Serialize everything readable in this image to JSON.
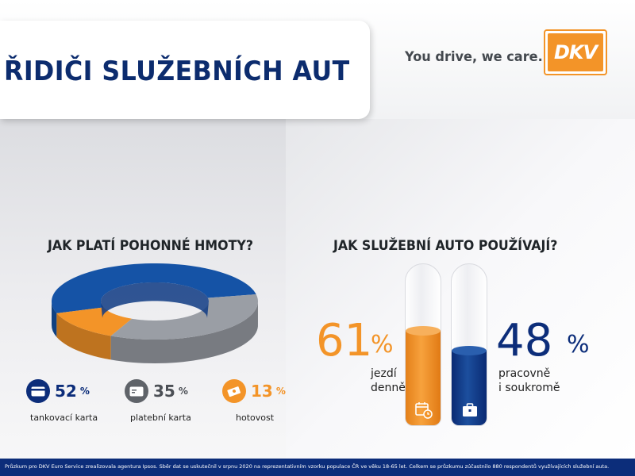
{
  "header": {
    "title": "ŘIDIČI SLUŽEBNÍCH AUT",
    "slogan": "You drive, we care.",
    "logo_text": "DKV"
  },
  "colors": {
    "navy": "#0c2c6e",
    "blue": "#1553a6",
    "gray": "#8e9299",
    "orange": "#f39428"
  },
  "payment": {
    "title": "JAK PLATÍ POHONNÉ HMOTY?",
    "items": [
      {
        "value": "52",
        "unit": "%",
        "label": "tankovací karta",
        "icon": "fuel-card-icon",
        "color": "#0c2d7a"
      },
      {
        "value": "35",
        "unit": "%",
        "label": "platební karta",
        "icon": "payment-card-icon",
        "color": "#5f6369"
      },
      {
        "value": "13",
        "unit": "%",
        "label": "hotovost",
        "icon": "cash-icon",
        "color": "#f39428"
      }
    ]
  },
  "usage": {
    "title": "JAK SLUŽEBNÍ AUTO POUŽÍVAJÍ?",
    "left": {
      "value": "61",
      "unit": "%",
      "caption_line1": "jezdí",
      "caption_line2": "denně",
      "icon": "calendar-clock-icon"
    },
    "right": {
      "value": "48",
      "unit": "%",
      "caption_line1": "pracovně",
      "caption_line2": "i soukromě",
      "icon": "briefcase-icon"
    }
  },
  "chart_data": [
    {
      "type": "pie",
      "title": "JAK PLATÍ POHONNÉ HMOTY?",
      "categories": [
        "tankovací karta",
        "platební karta",
        "hotovost"
      ],
      "values": [
        52,
        35,
        13
      ],
      "colors": [
        "#1553a6",
        "#9a9ea5",
        "#f39428"
      ]
    },
    {
      "type": "bar",
      "title": "JAK SLUŽEBNÍ AUTO POUŽÍVAJÍ?",
      "categories": [
        "jezdí denně",
        "pracovně i soukromě"
      ],
      "values": [
        61,
        48
      ],
      "colors": [
        "#f39428",
        "#0c2d7a"
      ],
      "ylim": [
        0,
        100
      ]
    }
  ],
  "footer": {
    "text": "Průzkum pro DKV Euro Service zrealizovala agentura Ipsos. Sběr dat se uskutečnil v srpnu 2020 na reprezentativním vzorku populace ČR ve věku 18-65 let. Celkem se průzkumu zúčastnilo 880 respondentů využívajících služební auta."
  }
}
